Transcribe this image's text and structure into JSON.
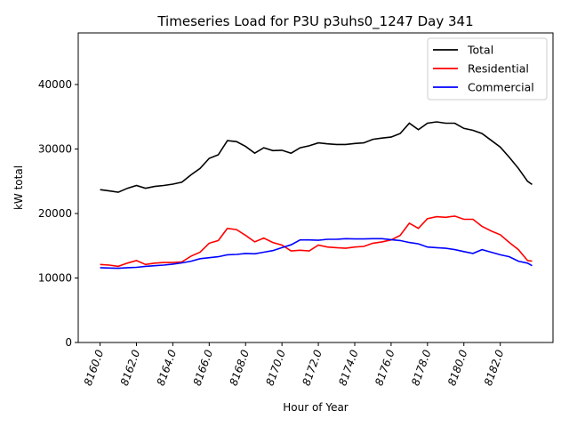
{
  "chart_data": {
    "type": "line",
    "title": "Timeseries Load for P3U p3uhs0_1247  Day 341",
    "xlabel": "Hour of Year",
    "ylabel": "kW total",
    "xlim": [
      8158.8,
      8184.9
    ],
    "ylim": [
      0,
      48000
    ],
    "xticks": [
      8160,
      8162,
      8164,
      8166,
      8168,
      8170,
      8172,
      8174,
      8176,
      8178,
      8180,
      8182
    ],
    "xtick_labels": [
      "8160.0",
      "8162.0",
      "8164.0",
      "8166.0",
      "8168.0",
      "8170.0",
      "8172.0",
      "8174.0",
      "8176.0",
      "8178.0",
      "8180.0",
      "8182.0"
    ],
    "yticks": [
      0,
      10000,
      20000,
      30000,
      40000
    ],
    "ytick_labels": [
      "0",
      "10000",
      "20000",
      "30000",
      "40000"
    ],
    "legend_position": "top-right",
    "x": [
      8160,
      8160.5,
      8161,
      8161.5,
      8162,
      8162.5,
      8163,
      8163.5,
      8164,
      8164.5,
      8165,
      8165.5,
      8166,
      8166.5,
      8167,
      8167.5,
      8168,
      8168.5,
      8169,
      8169.5,
      8170,
      8170.5,
      8171,
      8171.5,
      8172,
      8172.5,
      8173,
      8173.5,
      8174,
      8174.5,
      8175,
      8175.5,
      8176,
      8176.5,
      8177,
      8177.5,
      8178,
      8178.5,
      8179,
      8179.5,
      8180,
      8180.5,
      8181,
      8181.5,
      8182,
      8182.5,
      8183,
      8183.5,
      8183.75
    ],
    "series": [
      {
        "name": "Total",
        "color": "#000000",
        "values": [
          23700,
          23500,
          23300,
          23900,
          24350,
          23900,
          24200,
          24350,
          24550,
          24850,
          26000,
          27000,
          28550,
          29100,
          31300,
          31150,
          30400,
          29350,
          30200,
          29750,
          29800,
          29350,
          30200,
          30500,
          30950,
          30800,
          30700,
          30700,
          30850,
          30950,
          31500,
          31700,
          31850,
          32400,
          34000,
          33000,
          34000,
          34200,
          34000,
          34000,
          33200,
          32900,
          32400,
          31350,
          30300,
          28700,
          27000,
          25000,
          24500
        ]
      },
      {
        "name": "Residential",
        "color": "#ff0000",
        "values": [
          12100,
          12000,
          11800,
          12300,
          12700,
          12100,
          12300,
          12400,
          12400,
          12500,
          13400,
          14000,
          15400,
          15800,
          17700,
          17500,
          16600,
          15600,
          16200,
          15500,
          15100,
          14200,
          14300,
          14200,
          15100,
          14800,
          14700,
          14600,
          14800,
          14900,
          15400,
          15600,
          15900,
          16600,
          18500,
          17700,
          19200,
          19500,
          19400,
          19600,
          19100,
          19100,
          18000,
          17300,
          16700,
          15500,
          14400,
          12700,
          12600
        ]
      },
      {
        "name": "Commercial",
        "color": "#0000ff",
        "values": [
          11600,
          11550,
          11500,
          11600,
          11650,
          11800,
          11900,
          12000,
          12150,
          12350,
          12600,
          13000,
          13150,
          13300,
          13600,
          13650,
          13800,
          13750,
          14000,
          14250,
          14700,
          15150,
          15900,
          15900,
          15850,
          16000,
          16000,
          16100,
          16050,
          16050,
          16100,
          16100,
          15950,
          15800,
          15500,
          15300,
          14800,
          14700,
          14600,
          14400,
          14100,
          13800,
          14400,
          14000,
          13600,
          13300,
          12600,
          12300,
          11900
        ]
      }
    ]
  }
}
